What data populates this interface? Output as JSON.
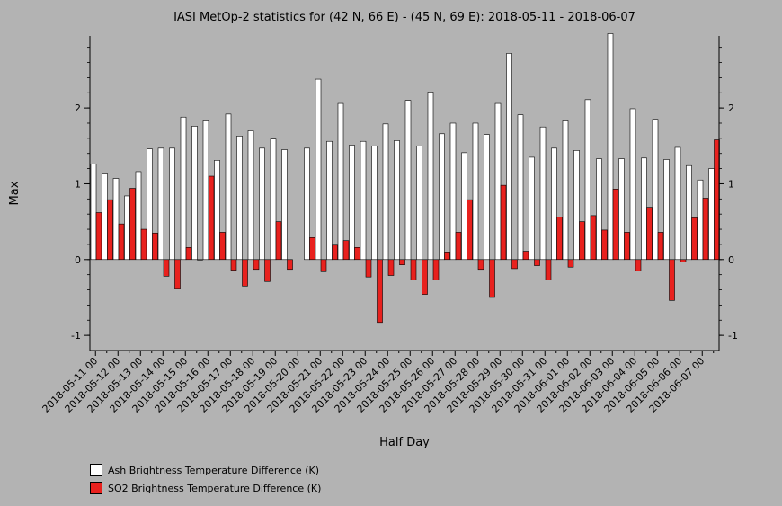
{
  "chart_data": {
    "type": "bar",
    "title": "IASI MetOp-2 statistics for (42 N, 66 E) - (45 N, 69 E): 2018-05-11 - 2018-06-07",
    "xlabel": "Half Day",
    "ylabel": "Max",
    "ylim": [
      -1.2,
      2.95
    ],
    "yticks": [
      -1,
      0,
      1,
      2
    ],
    "grid": false,
    "legend_position": "bottom-left",
    "categories": [
      "2018-05-11 00",
      "2018-05-11 12",
      "2018-05-12 00",
      "2018-05-12 12",
      "2018-05-13 00",
      "2018-05-13 12",
      "2018-05-14 00",
      "2018-05-14 12",
      "2018-05-15 00",
      "2018-05-15 12",
      "2018-05-16 00",
      "2018-05-16 12",
      "2018-05-17 00",
      "2018-05-17 12",
      "2018-05-18 00",
      "2018-05-18 12",
      "2018-05-19 00",
      "2018-05-19 12",
      "2018-05-20 00",
      "2018-05-20 12",
      "2018-05-21 00",
      "2018-05-21 12",
      "2018-05-22 00",
      "2018-05-22 12",
      "2018-05-23 00",
      "2018-05-23 12",
      "2018-05-24 00",
      "2018-05-24 12",
      "2018-05-25 00",
      "2018-05-25 12",
      "2018-05-26 00",
      "2018-05-26 12",
      "2018-05-27 00",
      "2018-05-27 12",
      "2018-05-28 00",
      "2018-05-28 12",
      "2018-05-29 00",
      "2018-05-29 12",
      "2018-05-30 00",
      "2018-05-30 12",
      "2018-05-31 00",
      "2018-05-31 12",
      "2018-06-01 00",
      "2018-06-01 12",
      "2018-06-02 00",
      "2018-06-02 12",
      "2018-06-03 00",
      "2018-06-03 12",
      "2018-06-04 00",
      "2018-06-04 12",
      "2018-06-05 00",
      "2018-06-05 12",
      "2018-06-06 00",
      "2018-06-06 12",
      "2018-06-07 00",
      "2018-06-07 12"
    ],
    "tick_labels": [
      "2018-05-11 00",
      "2018-05-12 00",
      "2018-05-13 00",
      "2018-05-14 00",
      "2018-05-15 00",
      "2018-05-16 00",
      "2018-05-17 00",
      "2018-05-18 00",
      "2018-05-19 00",
      "2018-05-20 00",
      "2018-05-21 00",
      "2018-05-22 00",
      "2018-05-23 00",
      "2018-05-24 00",
      "2018-05-25 00",
      "2018-05-26 00",
      "2018-05-27 00",
      "2018-05-28 00",
      "2018-05-29 00",
      "2018-05-30 00",
      "2018-05-31 00",
      "2018-06-01 00",
      "2018-06-02 00",
      "2018-06-03 00",
      "2018-06-04 00",
      "2018-06-05 00",
      "2018-06-06 00",
      "2018-06-07 00"
    ],
    "series": [
      {
        "name": "Ash Brightness Temperature Difference (K)",
        "color": "#ffffff",
        "values": [
          1.26,
          1.13,
          1.07,
          0.84,
          1.16,
          1.46,
          1.47,
          1.47,
          1.88,
          1.76,
          1.83,
          1.31,
          1.92,
          1.63,
          1.7,
          1.47,
          1.59,
          1.45,
          null,
          1.47,
          2.38,
          1.56,
          2.06,
          1.51,
          1.56,
          1.5,
          1.79,
          1.57,
          2.1,
          1.5,
          2.21,
          1.66,
          1.8,
          1.41,
          1.8,
          1.65,
          2.06,
          2.72,
          1.91,
          1.35,
          1.75,
          1.47,
          1.83,
          1.44,
          2.11,
          1.33,
          2.98,
          1.33,
          1.99,
          1.34,
          1.85,
          1.32,
          1.48,
          1.24,
          1.05,
          1.2
        ]
      },
      {
        "name": "SO2 Brightness Temperature Difference (K)",
        "color": "#e8211e",
        "values": [
          0.62,
          0.79,
          0.47,
          0.94,
          0.4,
          0.35,
          -0.22,
          -0.38,
          0.16,
          0.0,
          1.1,
          0.36,
          -0.14,
          -0.35,
          -0.13,
          -0.29,
          0.5,
          -0.13,
          null,
          0.29,
          -0.16,
          0.19,
          0.25,
          0.16,
          -0.23,
          -0.83,
          -0.21,
          -0.07,
          -0.27,
          -0.46,
          -0.27,
          0.1,
          0.36,
          0.79,
          -0.13,
          -0.5,
          0.98,
          -0.12,
          0.11,
          -0.08,
          -0.27,
          0.56,
          -0.1,
          0.5,
          0.58,
          0.39,
          0.93,
          0.36,
          -0.15,
          0.69,
          0.36,
          -0.54,
          -0.03,
          0.55,
          0.81,
          1.58
        ]
      }
    ]
  }
}
